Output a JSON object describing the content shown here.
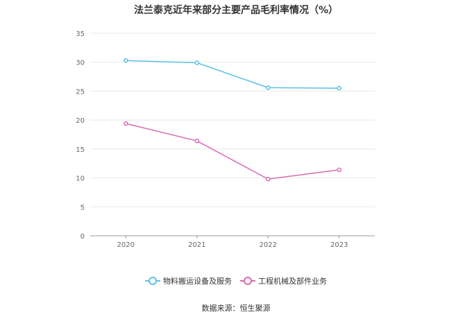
{
  "chart_data": {
    "type": "line",
    "title": "法兰泰克近年来部分主要产品毛利率情况（%）",
    "categories": [
      "2020",
      "2021",
      "2022",
      "2023"
    ],
    "series": [
      {
        "name": "物料搬运设备及服务",
        "values": [
          30.3,
          29.9,
          25.6,
          25.5
        ],
        "color": "#5bc0eb"
      },
      {
        "name": "工程机械及部件业务",
        "values": [
          19.4,
          16.4,
          9.8,
          11.4
        ],
        "color": "#d96ab0"
      }
    ],
    "ylim": [
      0,
      35
    ],
    "yticks": [
      "0",
      "5",
      "10",
      "15",
      "20",
      "25",
      "30",
      "35"
    ],
    "grid": true,
    "legend_position": "bottom",
    "source": "数据来源：恒生聚源"
  }
}
